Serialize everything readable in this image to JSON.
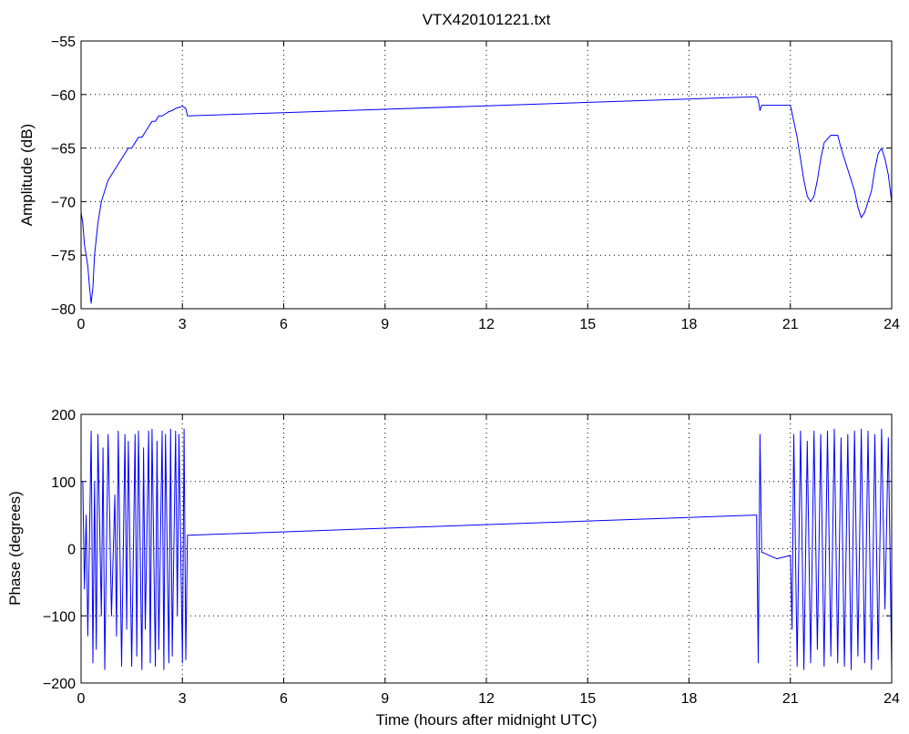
{
  "chart_data": [
    {
      "type": "line",
      "title": "VTX420101221.txt",
      "xlabel": "",
      "ylabel": "Amplitude (dB)",
      "xlim": [
        0,
        24
      ],
      "ylim": [
        -80,
        -55
      ],
      "xticks": [
        0,
        3,
        6,
        9,
        12,
        15,
        18,
        21,
        24
      ],
      "yticks": [
        -80,
        -75,
        -70,
        -65,
        -60,
        -55
      ],
      "xtick_labels": [
        "0",
        "3",
        "6",
        "9",
        "12",
        "15",
        "18",
        "21",
        "24"
      ],
      "ytick_labels": [
        "−80",
        "−75",
        "−70",
        "−65",
        "−60",
        "−55"
      ],
      "grid": true,
      "series": [
        {
          "color": "#0000ff",
          "x": [
            0,
            0.05,
            0.1,
            0.15,
            0.2,
            0.25,
            0.3,
            0.35,
            0.4,
            0.5,
            0.6,
            0.7,
            0.8,
            0.9,
            1.0,
            1.1,
            1.2,
            1.3,
            1.4,
            1.5,
            1.6,
            1.7,
            1.8,
            1.9,
            2.0,
            2.1,
            2.2,
            2.3,
            2.4,
            2.5,
            2.6,
            2.7,
            2.8,
            2.9,
            3.0,
            3.1,
            3.15,
            20.0,
            20.05,
            20.1,
            20.15,
            20.2,
            20.3,
            20.5,
            20.8,
            21.0,
            21.1,
            21.2,
            21.3,
            21.4,
            21.5,
            21.6,
            21.7,
            21.8,
            21.9,
            22.0,
            22.2,
            22.4,
            22.5,
            22.7,
            22.9,
            23.0,
            23.1,
            23.2,
            23.4,
            23.5,
            23.6,
            23.7,
            23.8,
            23.9,
            24.0
          ],
          "y": [
            -71,
            -72,
            -74,
            -75,
            -76,
            -78,
            -79.5,
            -78,
            -75,
            -72,
            -70,
            -69,
            -68,
            -67.5,
            -67,
            -66.5,
            -66,
            -65.5,
            -65,
            -65,
            -64.5,
            -64,
            -64,
            -63.5,
            -63,
            -62.5,
            -62.5,
            -62,
            -62,
            -61.8,
            -61.6,
            -61.5,
            -61.3,
            -61.2,
            -61.1,
            -61.3,
            -62,
            -60.2,
            -60.5,
            -61.5,
            -61,
            -61,
            -61,
            -61,
            -61,
            -61,
            -62.5,
            -64,
            -66,
            -68,
            -69.5,
            -70,
            -69.5,
            -68,
            -66,
            -64.5,
            -63.8,
            -63.8,
            -65,
            -67,
            -69,
            -70.5,
            -71.5,
            -71,
            -69,
            -67,
            -65.5,
            -65,
            -66,
            -67.5,
            -70
          ]
        }
      ]
    },
    {
      "type": "line",
      "title": "",
      "xlabel": "Time (hours after midnight UTC)",
      "ylabel": "Phase (degrees)",
      "xlim": [
        0,
        24
      ],
      "ylim": [
        -200,
        200
      ],
      "xticks": [
        0,
        3,
        6,
        9,
        12,
        15,
        18,
        21,
        24
      ],
      "yticks": [
        -200,
        -100,
        0,
        100,
        200
      ],
      "xtick_labels": [
        "0",
        "3",
        "6",
        "9",
        "12",
        "15",
        "18",
        "21",
        "24"
      ],
      "ytick_labels": [
        "−200",
        "−100",
        "0",
        "100",
        "200"
      ],
      "grid": true,
      "series": [
        {
          "color": "#0000ff",
          "x": [
            0,
            0.05,
            0.1,
            0.15,
            0.2,
            0.25,
            0.3,
            0.35,
            0.4,
            0.45,
            0.5,
            0.6,
            0.65,
            0.7,
            0.8,
            0.9,
            1.0,
            1.05,
            1.1,
            1.2,
            1.3,
            1.35,
            1.4,
            1.5,
            1.6,
            1.65,
            1.7,
            1.8,
            1.85,
            1.9,
            2.0,
            2.05,
            2.1,
            2.2,
            2.25,
            2.3,
            2.4,
            2.45,
            2.5,
            2.6,
            2.65,
            2.7,
            2.8,
            2.85,
            2.9,
            3.0,
            3.05,
            3.1,
            3.15,
            19.95,
            20.0,
            20.05,
            20.1,
            20.15,
            20.6,
            21.0,
            21.05,
            21.1,
            21.2,
            21.3,
            21.4,
            21.5,
            21.6,
            21.7,
            21.8,
            21.9,
            22.0,
            22.1,
            22.2,
            22.3,
            22.4,
            22.5,
            22.6,
            22.7,
            22.8,
            22.9,
            23.0,
            23.1,
            23.2,
            23.3,
            23.4,
            23.5,
            23.6,
            23.7,
            23.8,
            23.9,
            24.0
          ],
          "y": [
            100,
            100,
            -60,
            50,
            -130,
            20,
            175,
            -170,
            100,
            -150,
            170,
            -100,
            150,
            -180,
            170,
            -100,
            80,
            -130,
            175,
            -175,
            170,
            -120,
            160,
            -175,
            170,
            -160,
            175,
            -180,
            150,
            -120,
            175,
            -170,
            178,
            -175,
            160,
            -150,
            175,
            -180,
            170,
            -170,
            178,
            -160,
            175,
            -100,
            170,
            -170,
            178,
            -165,
            20,
            50,
            50,
            -170,
            170,
            -5,
            -15,
            -10,
            -120,
            170,
            -175,
            175,
            -180,
            160,
            -170,
            175,
            -150,
            170,
            -175,
            175,
            -160,
            178,
            -170,
            165,
            -175,
            170,
            -180,
            175,
            -160,
            178,
            -170,
            175,
            -180,
            170,
            -165,
            178,
            -90,
            165,
            -180
          ]
        }
      ]
    }
  ]
}
